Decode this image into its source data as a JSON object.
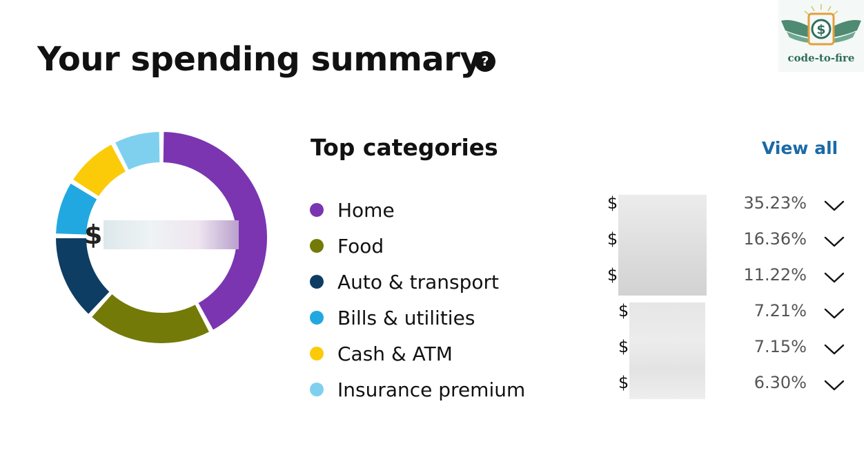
{
  "header": {
    "title": "Your spending summary",
    "help_glyph": "?"
  },
  "logo": {
    "text": "code-to-fire",
    "glyph": "$"
  },
  "summary": {
    "currency_symbol": "$"
  },
  "categories_panel": {
    "title": "Top categories",
    "view_all_label": "View all",
    "chevron_icon": "chevron-down-icon"
  },
  "chart_data": {
    "type": "pie",
    "variant": "donut",
    "categories": [
      "Home",
      "Food",
      "Auto & transport",
      "Bills & utilities",
      "Cash & ATM",
      "Insurance premium"
    ],
    "values": [
      35.23,
      16.36,
      11.22,
      7.21,
      7.15,
      6.3
    ],
    "value_labels": [
      "35.23%",
      "16.36%",
      "11.22%",
      "7.21%",
      "7.15%",
      "6.30%"
    ],
    "colors": [
      "#7b35b0",
      "#737a07",
      "#0e3d63",
      "#22a8e0",
      "#fbcb0a",
      "#7fd0ef"
    ],
    "currency_symbol": "$",
    "title": "",
    "legend": "right"
  }
}
